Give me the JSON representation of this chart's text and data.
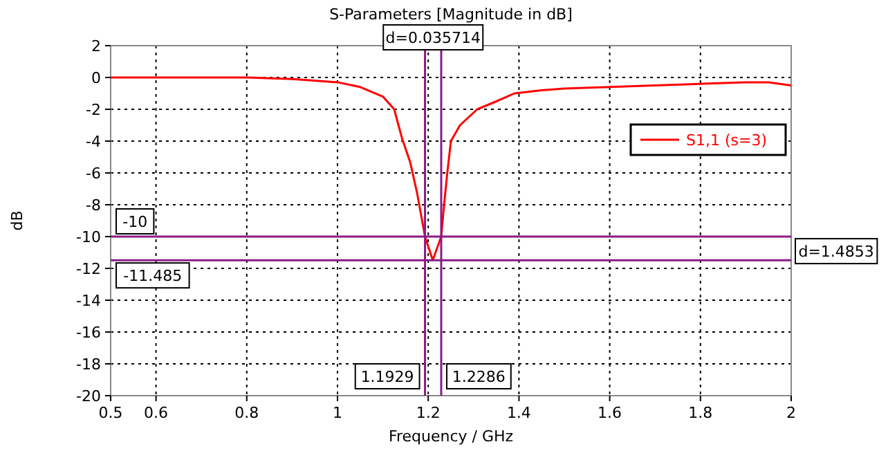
{
  "chart_data": {
    "type": "line",
    "title": "S-Parameters [Magnitude in dB]",
    "xlabel": "Frequency / GHz",
    "ylabel": "dB",
    "x": [
      0.5,
      0.6,
      0.7,
      0.8,
      0.9,
      1.0,
      1.05,
      1.1,
      1.125,
      1.142,
      1.16,
      1.175,
      1.1929,
      1.21,
      1.2286,
      1.235,
      1.242,
      1.25,
      1.27,
      1.308,
      1.35,
      1.39,
      1.45,
      1.5,
      1.6,
      1.7,
      1.8,
      1.9,
      1.95,
      2.0
    ],
    "series": [
      {
        "name": "S1,1 (s=3)",
        "color": "#ff0000",
        "values": [
          0,
          0,
          0,
          0,
          -0.1,
          -0.3,
          -0.6,
          -1.2,
          -2,
          -3.8,
          -5.3,
          -7.2,
          -10,
          -11.485,
          -10,
          -8,
          -6,
          -4,
          -3,
          -2,
          -1.5,
          -1,
          -0.8,
          -0.7,
          -0.6,
          -0.5,
          -0.4,
          -0.3,
          -0.3,
          -0.5
        ]
      }
    ],
    "xlim": [
      0.5,
      2
    ],
    "xticks": [
      0.5,
      0.6,
      0.8,
      1,
      1.2,
      1.4,
      1.6,
      1.8,
      2
    ],
    "ylim": [
      -20,
      2
    ],
    "yticks": [
      -20,
      -18,
      -16,
      -14,
      -12,
      -10,
      -8,
      -6,
      -4,
      -2,
      0,
      2
    ],
    "grid": true,
    "legend": "right",
    "line_style": "solid",
    "marker": "none",
    "ref_lines": [
      {
        "axis": "y",
        "value": -10,
        "label": "-10",
        "color": "#8b1a89"
      },
      {
        "axis": "y",
        "value": -11.485,
        "label": "-11.485",
        "color": "#8b1a89"
      },
      {
        "axis": "x",
        "value": 1.1929,
        "label": "1.1929",
        "color": "#8b1a89"
      },
      {
        "axis": "x",
        "value": 1.2286,
        "label": "1.2286",
        "color": "#8b1a89"
      }
    ],
    "annotations": [
      "d=0.035714",
      "d=1.4853"
    ]
  }
}
